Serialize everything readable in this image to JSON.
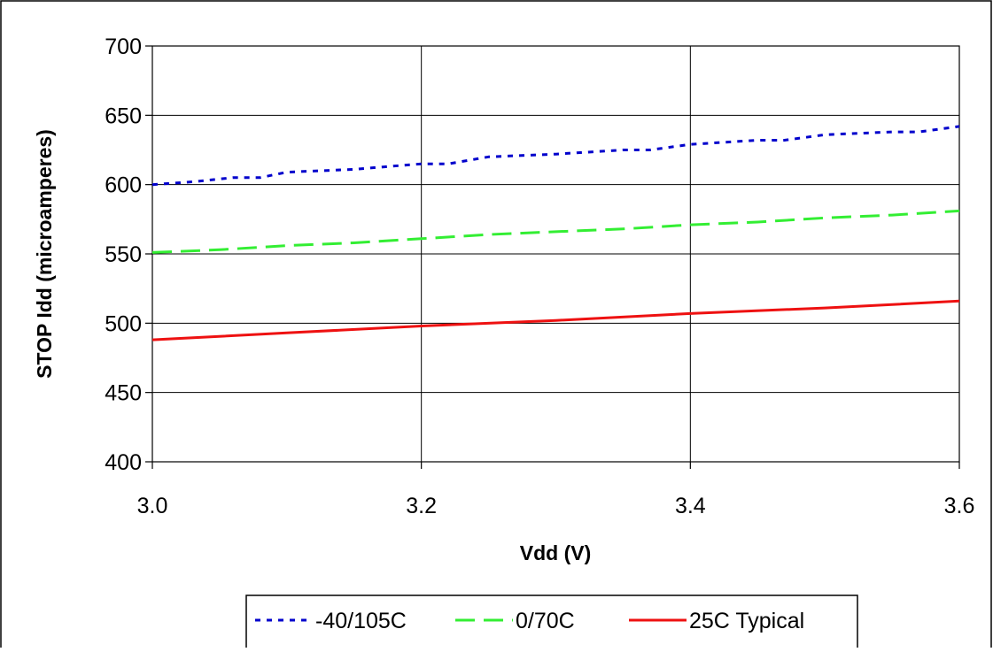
{
  "chart_data": {
    "type": "line",
    "title": "",
    "xlabel": "Vdd (V)",
    "ylabel": "STOP Idd (microamperes)",
    "xlim": [
      3.0,
      3.6
    ],
    "ylim": [
      400,
      700
    ],
    "x_ticks": [
      3.0,
      3.2,
      3.4,
      3.6
    ],
    "x_tick_labels": [
      "3.0",
      "3.2",
      "3.4",
      "3.6"
    ],
    "y_ticks": [
      400,
      450,
      500,
      550,
      600,
      650,
      700
    ],
    "y_tick_labels": [
      "400",
      "450",
      "500",
      "550",
      "600",
      "650",
      "700"
    ],
    "grid": true,
    "legend_position": "bottom",
    "series": [
      {
        "name": "-40/105C",
        "color": "#0000cc",
        "dash": "dotted",
        "x": [
          3.0,
          3.03,
          3.06,
          3.08,
          3.1,
          3.15,
          3.2,
          3.22,
          3.25,
          3.3,
          3.35,
          3.37,
          3.4,
          3.45,
          3.47,
          3.5,
          3.55,
          3.57,
          3.6
        ],
        "y": [
          600,
          602,
          605,
          605,
          609,
          611,
          615,
          615,
          620,
          622,
          625,
          625,
          629,
          632,
          632,
          636,
          638,
          638,
          642
        ]
      },
      {
        "name": "0/70C",
        "color": "#33ee33",
        "dash": "dashed",
        "x": [
          3.0,
          3.05,
          3.1,
          3.15,
          3.2,
          3.25,
          3.3,
          3.35,
          3.4,
          3.45,
          3.5,
          3.55,
          3.6
        ],
        "y": [
          551,
          553,
          556,
          558,
          561,
          564,
          566,
          568,
          571,
          573,
          576,
          578,
          581
        ]
      },
      {
        "name": "25C Typical",
        "color": "#ee1111",
        "dash": "solid",
        "x": [
          3.0,
          3.1,
          3.2,
          3.3,
          3.4,
          3.5,
          3.6
        ],
        "y": [
          488,
          493,
          498,
          502,
          507,
          511,
          516
        ]
      }
    ]
  }
}
